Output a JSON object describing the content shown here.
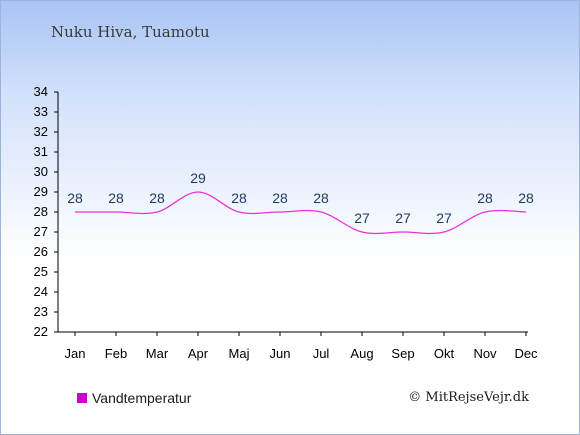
{
  "header": {
    "title": "Nuku Hiva, Tuamotu"
  },
  "footer": {
    "credit": "© MitRejseVejr.dk"
  },
  "chart_data": {
    "type": "line",
    "categories": [
      "Jan",
      "Feb",
      "Mar",
      "Apr",
      "Maj",
      "Jun",
      "Jul",
      "Aug",
      "Sep",
      "Okt",
      "Nov",
      "Dec"
    ],
    "series": [
      {
        "name": "Vandtemperatur",
        "values": [
          28,
          28,
          28,
          29,
          28,
          28,
          28,
          27,
          27,
          27,
          28,
          28
        ]
      }
    ],
    "data_labels": [
      "28",
      "28",
      "28",
      "29",
      "28",
      "28",
      "28",
      "27",
      "27",
      "27",
      "28",
      "28"
    ],
    "y_ticks": [
      22,
      23,
      24,
      25,
      26,
      27,
      28,
      29,
      30,
      31,
      32,
      33,
      34
    ],
    "ylim": [
      22,
      34
    ],
    "xlabel": "",
    "ylabel": "",
    "grid": false,
    "legend_position": "bottom-left",
    "colors": {
      "line": "#e832d8",
      "legend": "#cc00cc",
      "axis": "#000000",
      "label": "#1e3a5f"
    }
  }
}
